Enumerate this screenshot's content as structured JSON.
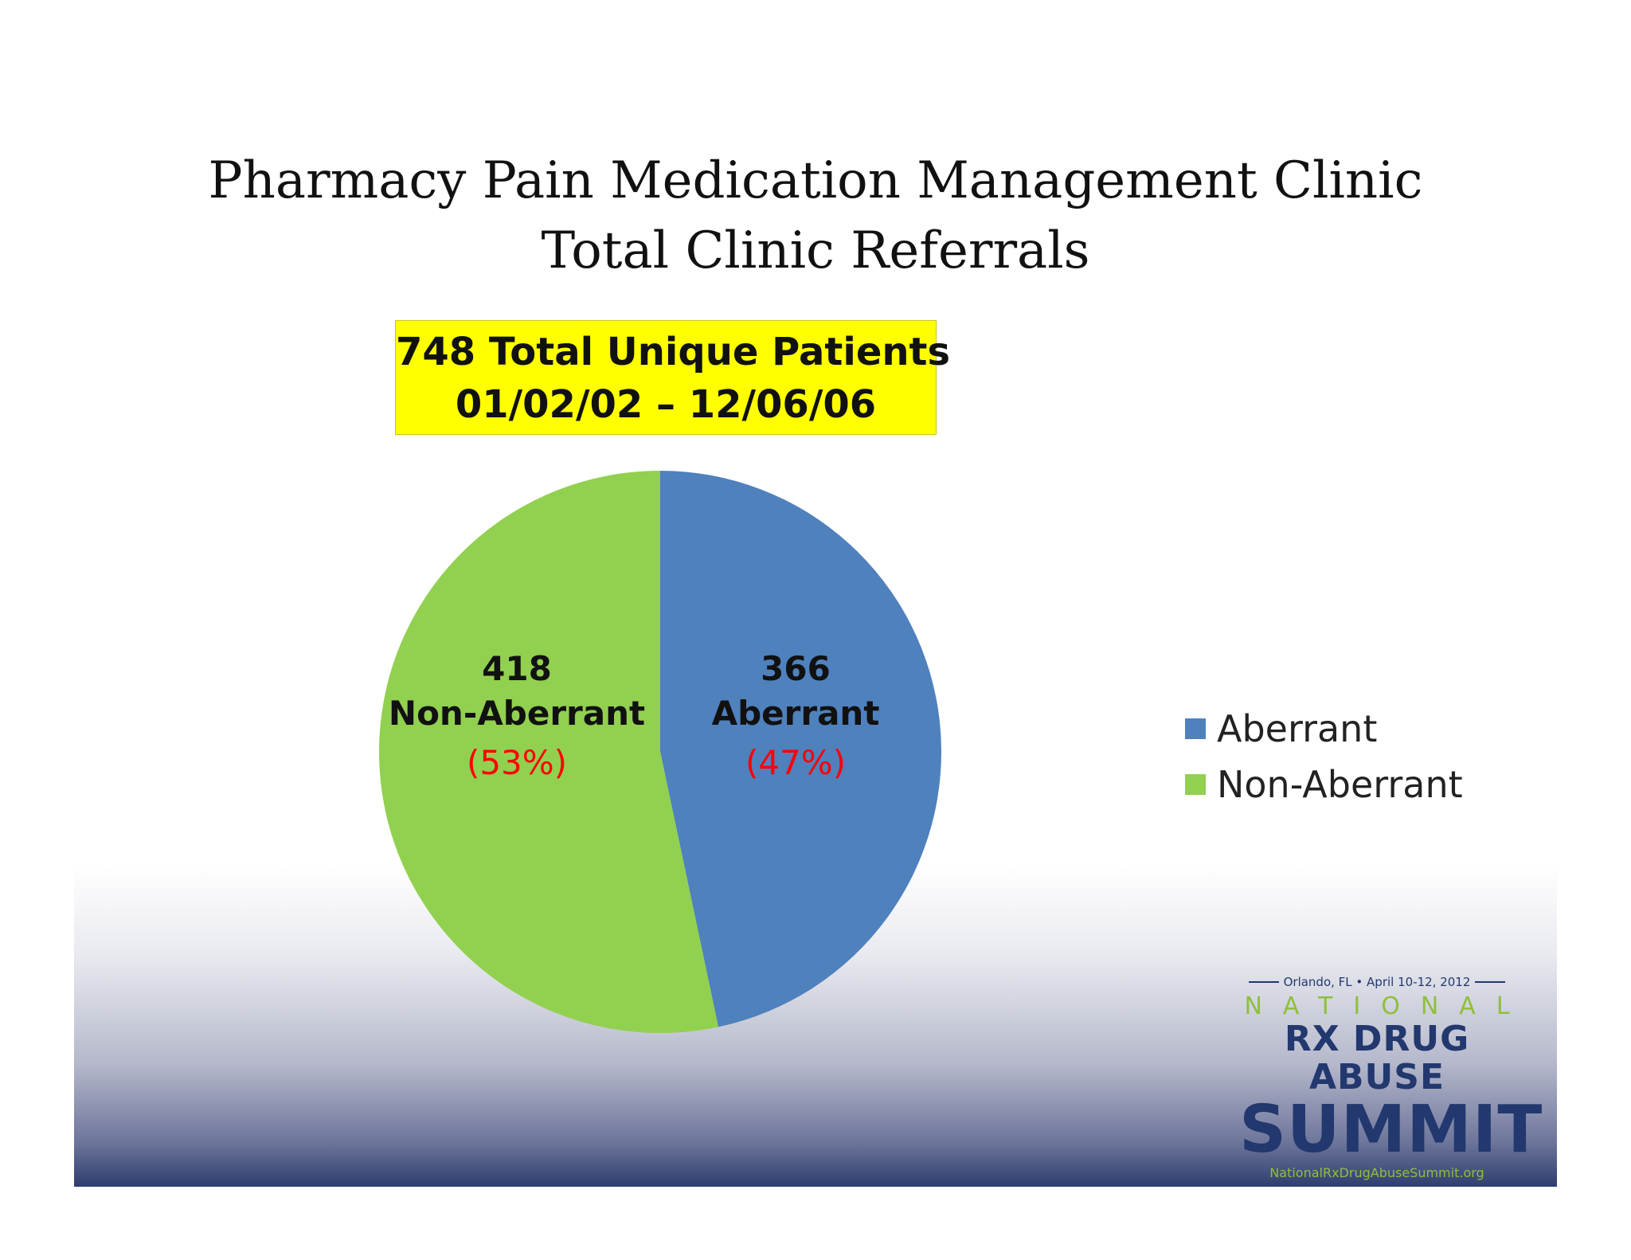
{
  "title": {
    "line1": "Pharmacy Pain Medication Management Clinic",
    "line2": "Total Clinic Referrals"
  },
  "callout": {
    "line1": "748 Total Unique Patients",
    "line2": "01/02/02 – 12/06/06",
    "background": "#ffff00"
  },
  "chart_data": {
    "type": "pie",
    "title": "",
    "slices": [
      {
        "name": "Aberrant",
        "value": 366,
        "label_value": "366",
        "label_name": "Aberrant",
        "percent_label": "(47%)",
        "color": "#4f81bd"
      },
      {
        "name": "Non-Aberrant",
        "value": 418,
        "label_value": "418",
        "label_name": "Non-Aberrant",
        "percent_label": "(53%)",
        "color": "#92d050"
      }
    ],
    "legend": {
      "placement": "right",
      "entries": [
        "Aberrant",
        "Non-Aberrant"
      ]
    }
  },
  "logo": {
    "location": "Orlando, FL • April 10-12, 2012",
    "line1": "NATIONAL",
    "line2": "RX DRUG ABUSE",
    "line3": "SUMMIT",
    "url": "NationalRxDrugAbuseSummit.org"
  }
}
